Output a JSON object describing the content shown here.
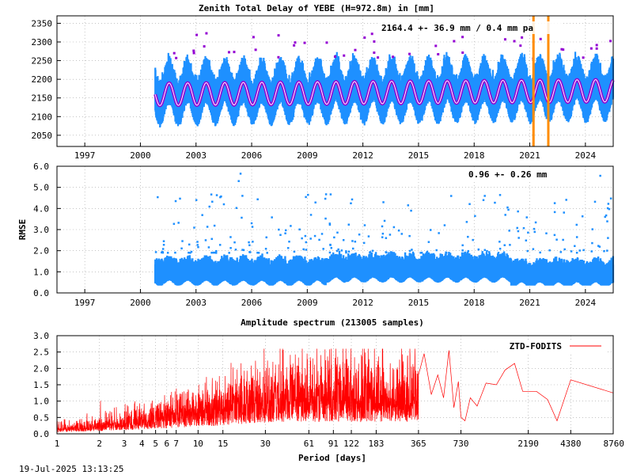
{
  "footer": {
    "timestamp": "19-Jul-2025 13:13:25"
  },
  "chart_data": [
    {
      "type": "scatter",
      "title": "Zenith Total Delay of YEBE (H=972.8m) in [mm]",
      "ylabel": "",
      "xlim": [
        1995.5,
        2025.5
      ],
      "ylim": [
        2020,
        2370
      ],
      "x_ticks": [
        1997,
        2000,
        2003,
        2006,
        2009,
        2012,
        2015,
        2018,
        2021,
        2024
      ],
      "y_ticks": [
        2050,
        2100,
        2150,
        2200,
        2250,
        2300,
        2350
      ],
      "annotation": "2164.4 +-  36.9 mm /  0.4 mm pa",
      "data_start": 2000.8,
      "data_end": 2025.5,
      "mean": 2164.4,
      "std": 36.9,
      "trend_mm_per_year": 0.4,
      "seasonal_amplitude": 30,
      "vertical_markers": [
        2021.2,
        2022.0
      ],
      "colors": {
        "data": "#1e90ff",
        "fit": "#9400d3",
        "fit_core": "#ffffff",
        "marker": "#ff8c00",
        "outlier": "#9400d3"
      }
    },
    {
      "type": "scatter",
      "title": "",
      "ylabel": "RMSE",
      "xlim": [
        1995.5,
        2025.5
      ],
      "ylim": [
        0,
        6
      ],
      "x_ticks": [
        1997,
        2000,
        2003,
        2006,
        2009,
        2012,
        2015,
        2018,
        2021,
        2024
      ],
      "y_ticks": [
        "0.0",
        "1.0",
        "2.0",
        "3.0",
        "4.0",
        "5.0",
        "6.0"
      ],
      "annotation": "0.96 +-  0.26 mm",
      "data_start": 2000.8,
      "data_end": 2025.5,
      "colors": {
        "data": "#1e90ff"
      }
    },
    {
      "type": "line",
      "title": "Amplitude spectrum (213005 samples)",
      "xlabel": "Period [days]",
      "ylabel": "",
      "x_scale": "log",
      "xlim": [
        1,
        8760
      ],
      "ylim": [
        0,
        3
      ],
      "x_ticks": [
        1,
        2,
        3,
        4,
        5,
        6,
        7,
        10,
        15,
        30,
        61,
        91,
        122,
        183,
        365,
        730,
        2190,
        4380,
        8760
      ],
      "y_ticks": [
        "0.0",
        "0.5",
        "1.0",
        "1.5",
        "2.0",
        "2.5",
        "3.0"
      ],
      "legend": {
        "position": "top-right",
        "entries": [
          "ZTD-FODITS"
        ]
      },
      "sparse_points": [
        [
          365,
          1.8
        ],
        [
          400,
          2.45
        ],
        [
          450,
          1.2
        ],
        [
          500,
          1.8
        ],
        [
          550,
          1.1
        ],
        [
          600,
          2.55
        ],
        [
          650,
          0.8
        ],
        [
          700,
          1.6
        ],
        [
          730,
          0.5
        ],
        [
          780,
          0.4
        ],
        [
          850,
          1.1
        ],
        [
          950,
          0.85
        ],
        [
          1100,
          1.55
        ],
        [
          1300,
          1.5
        ],
        [
          1500,
          1.95
        ],
        [
          1750,
          2.15
        ],
        [
          2000,
          1.3
        ],
        [
          2500,
          1.3
        ],
        [
          3000,
          1.05
        ],
        [
          3500,
          0.4
        ],
        [
          4380,
          1.65
        ],
        [
          8760,
          1.25
        ]
      ],
      "colors": {
        "line": "#ff0000"
      }
    }
  ]
}
